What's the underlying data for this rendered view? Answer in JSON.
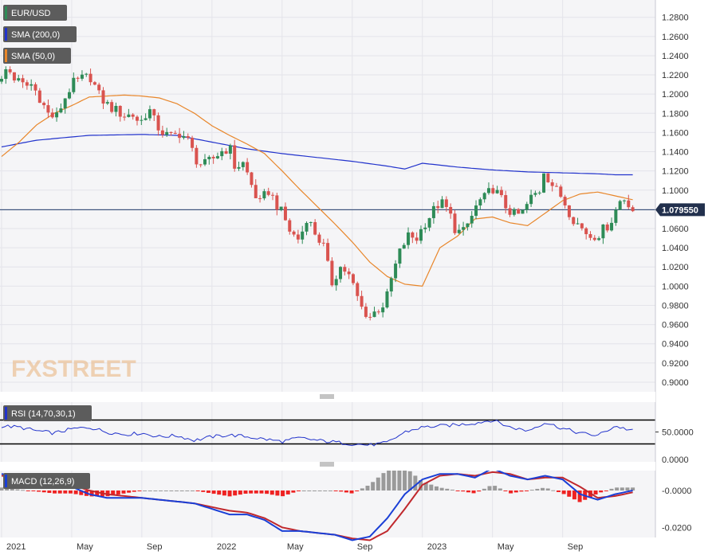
{
  "colors": {
    "bull": "#2e8b57",
    "bear": "#d9534f",
    "sma200": "#2233cc",
    "sma50": "#e8862a",
    "rsi_line": "#2233cc",
    "macd_line": "#1a3fd6",
    "signal_line": "#c0282d",
    "hist_pos": "#9a9a9a",
    "hist_neg": "#ee2222",
    "current_price_line": "#1f3a6b",
    "price_tag": "#22304d"
  },
  "logo": {
    "text": "FXSTREET"
  },
  "chart_data": [
    {
      "type": "candlestick",
      "title": "EUR/USD",
      "legend": [
        "EUR/USD",
        "SMA (200,0)",
        "SMA (50,0)"
      ],
      "y_ticks": [
        "1.2800",
        "1.2600",
        "1.2400",
        "1.2200",
        "1.2000",
        "1.1800",
        "1.1600",
        "1.1400",
        "1.1200",
        "1.1000",
        "1.0800",
        "1.0600",
        "1.0400",
        "1.0200",
        "1.0000",
        "0.9800",
        "0.9600",
        "0.9400",
        "0.9200",
        "0.9000"
      ],
      "ylim": [
        0.89,
        1.298
      ],
      "current_price": "1.079550",
      "x_labels": [
        {
          "label": "2021",
          "t": 0
        },
        {
          "label": "May",
          "t": 4
        },
        {
          "label": "Sep",
          "t": 8
        },
        {
          "label": "2022",
          "t": 12
        },
        {
          "label": "May",
          "t": 16
        },
        {
          "label": "Sep",
          "t": 20
        },
        {
          "label": "2023",
          "t": 24
        },
        {
          "label": "May",
          "t": 28
        },
        {
          "label": "Sep",
          "t": 32
        }
      ],
      "x_range": [
        0,
        36.2
      ],
      "close_anchors": [
        [
          0,
          1.213
        ],
        [
          0.3,
          1.228
        ],
        [
          0.8,
          1.215
        ],
        [
          1.3,
          1.208
        ],
        [
          1.7,
          1.21
        ],
        [
          2.2,
          1.196
        ],
        [
          2.6,
          1.18
        ],
        [
          3.1,
          1.175
        ],
        [
          3.5,
          1.192
        ],
        [
          4.0,
          1.21
        ],
        [
          4.6,
          1.216
        ],
        [
          5.1,
          1.218
        ],
        [
          5.5,
          1.2
        ],
        [
          6.0,
          1.189
        ],
        [
          6.5,
          1.183
        ],
        [
          7.0,
          1.178
        ],
        [
          7.5,
          1.178
        ],
        [
          7.9,
          1.17
        ],
        [
          8.4,
          1.185
        ],
        [
          8.8,
          1.168
        ],
        [
          9.3,
          1.158
        ],
        [
          9.7,
          1.155
        ],
        [
          10.2,
          1.16
        ],
        [
          10.6,
          1.152
        ],
        [
          11.1,
          1.132
        ],
        [
          11.5,
          1.125
        ],
        [
          12.0,
          1.132
        ],
        [
          12.5,
          1.14
        ],
        [
          13.0,
          1.145
        ],
        [
          13.3,
          1.124
        ],
        [
          13.8,
          1.128
        ],
        [
          14.3,
          1.103
        ],
        [
          14.7,
          1.085
        ],
        [
          15.2,
          1.1
        ],
        [
          15.6,
          1.088
        ],
        [
          16.1,
          1.072
        ],
        [
          16.5,
          1.055
        ],
        [
          17.0,
          1.048
        ],
        [
          17.4,
          1.072
        ],
        [
          17.9,
          1.055
        ],
        [
          18.4,
          1.04
        ],
        [
          18.8,
          1.002
        ],
        [
          19.3,
          1.02
        ],
        [
          19.7,
          1.015
        ],
        [
          20.1,
          0.998
        ],
        [
          20.5,
          0.978
        ],
        [
          21.0,
          0.968
        ],
        [
          21.4,
          0.975
        ],
        [
          21.9,
          0.983
        ],
        [
          22.3,
          1.012
        ],
        [
          22.8,
          1.04
        ],
        [
          23.2,
          1.052
        ],
        [
          23.7,
          1.05
        ],
        [
          24.1,
          1.065
        ],
        [
          24.5,
          1.075
        ],
        [
          25.0,
          1.088
        ],
        [
          25.5,
          1.078
        ],
        [
          25.9,
          1.058
        ],
        [
          26.3,
          1.055
        ],
        [
          26.8,
          1.072
        ],
        [
          27.2,
          1.088
        ],
        [
          27.6,
          1.092
        ],
        [
          28.0,
          1.103
        ],
        [
          28.4,
          1.093
        ],
        [
          28.8,
          1.082
        ],
        [
          29.3,
          1.073
        ],
        [
          29.7,
          1.076
        ],
        [
          30.2,
          1.092
        ],
        [
          30.7,
          1.1
        ],
        [
          30.9,
          1.122
        ],
        [
          31.2,
          1.112
        ],
        [
          31.6,
          1.1
        ],
        [
          32.0,
          1.092
        ],
        [
          32.3,
          1.08
        ],
        [
          32.7,
          1.068
        ],
        [
          33.2,
          1.058
        ],
        [
          33.6,
          1.052
        ],
        [
          34.1,
          1.055
        ],
        [
          34.5,
          1.062
        ],
        [
          34.9,
          1.072
        ],
        [
          35.2,
          1.088
        ],
        [
          35.6,
          1.092
        ],
        [
          36.0,
          1.0795
        ]
      ],
      "sma200_anchors": [
        [
          0,
          1.145
        ],
        [
          2,
          1.152
        ],
        [
          5,
          1.157
        ],
        [
          8,
          1.158
        ],
        [
          10,
          1.157
        ],
        [
          12,
          1.15
        ],
        [
          14,
          1.143
        ],
        [
          16,
          1.138
        ],
        [
          18,
          1.134
        ],
        [
          20,
          1.13
        ],
        [
          22,
          1.125
        ],
        [
          23,
          1.122
        ],
        [
          24,
          1.128
        ],
        [
          26,
          1.124
        ],
        [
          28,
          1.121
        ],
        [
          30,
          1.119
        ],
        [
          32,
          1.118
        ],
        [
          34,
          1.117
        ],
        [
          35,
          1.116
        ],
        [
          36,
          1.116
        ]
      ],
      "sma50_anchors": [
        [
          0,
          1.135
        ],
        [
          1,
          1.15
        ],
        [
          2,
          1.168
        ],
        [
          3,
          1.18
        ],
        [
          4,
          1.188
        ],
        [
          5,
          1.197
        ],
        [
          6,
          1.198
        ],
        [
          7,
          1.199
        ],
        [
          8,
          1.198
        ],
        [
          9,
          1.196
        ],
        [
          10,
          1.19
        ],
        [
          11,
          1.18
        ],
        [
          12,
          1.167
        ],
        [
          13,
          1.157
        ],
        [
          14,
          1.148
        ],
        [
          15,
          1.138
        ],
        [
          16,
          1.12
        ],
        [
          17,
          1.101
        ],
        [
          18,
          1.083
        ],
        [
          19,
          1.065
        ],
        [
          20,
          1.046
        ],
        [
          21,
          1.025
        ],
        [
          22,
          1.01
        ],
        [
          23,
          1.002
        ],
        [
          24,
          1.0
        ],
        [
          25,
          1.04
        ],
        [
          26,
          1.052
        ],
        [
          27,
          1.07
        ],
        [
          28,
          1.072
        ],
        [
          29,
          1.066
        ],
        [
          30,
          1.063
        ],
        [
          31,
          1.076
        ],
        [
          32,
          1.089
        ],
        [
          33,
          1.096
        ],
        [
          34,
          1.098
        ],
        [
          35,
          1.094
        ],
        [
          36,
          1.09
        ]
      ]
    },
    {
      "type": "line",
      "title": "RSI (14,70,30,1)",
      "legend": [
        "RSI (14,70,30,1)"
      ],
      "y_ticks": [
        "50.0000",
        "0.0000"
      ],
      "ylim": [
        0,
        100
      ],
      "levels": [
        70,
        30
      ],
      "rsi_anchors": [
        [
          0,
          60
        ],
        [
          1,
          58
        ],
        [
          2,
          52
        ],
        [
          3,
          48
        ],
        [
          4,
          55
        ],
        [
          5,
          58
        ],
        [
          6,
          50
        ],
        [
          7,
          46
        ],
        [
          8,
          48
        ],
        [
          9,
          42
        ],
        [
          10,
          44
        ],
        [
          11,
          36
        ],
        [
          12,
          42
        ],
        [
          13,
          45
        ],
        [
          14,
          42
        ],
        [
          15,
          38
        ],
        [
          16,
          34
        ],
        [
          17,
          40
        ],
        [
          18,
          36
        ],
        [
          19,
          33
        ],
        [
          20,
          30
        ],
        [
          21,
          28
        ],
        [
          22,
          32
        ],
        [
          23,
          50
        ],
        [
          24,
          58
        ],
        [
          25,
          60
        ],
        [
          26,
          62
        ],
        [
          27,
          65
        ],
        [
          28,
          70
        ],
        [
          29,
          58
        ],
        [
          30,
          52
        ],
        [
          31,
          66
        ],
        [
          32,
          56
        ],
        [
          33,
          48
        ],
        [
          34,
          44
        ],
        [
          35,
          60
        ],
        [
          36,
          52
        ]
      ]
    },
    {
      "type": "macd",
      "title": "MACD (12,26,9)",
      "legend": [
        "MACD (12,26,9)"
      ],
      "y_ticks": [
        "-0.0000",
        "-0.0200"
      ],
      "ylim": [
        -0.0255,
        0.0108
      ],
      "macd_anchors": [
        [
          0,
          0.009
        ],
        [
          1.5,
          0.007
        ],
        [
          3,
          0.004
        ],
        [
          4,
          0.002
        ],
        [
          5,
          -0.002
        ],
        [
          6,
          -0.004
        ],
        [
          7,
          -0.004
        ],
        [
          8,
          -0.004
        ],
        [
          9,
          -0.005
        ],
        [
          10,
          -0.006
        ],
        [
          11,
          -0.007
        ],
        [
          12,
          -0.01
        ],
        [
          13,
          -0.013
        ],
        [
          14,
          -0.013
        ],
        [
          15,
          -0.016
        ],
        [
          16,
          -0.022
        ],
        [
          17,
          -0.022
        ],
        [
          18,
          -0.023
        ],
        [
          19,
          -0.024
        ],
        [
          20,
          -0.027
        ],
        [
          21,
          -0.025
        ],
        [
          22,
          -0.015
        ],
        [
          23,
          -0.002
        ],
        [
          24,
          0.006
        ],
        [
          25,
          0.009
        ],
        [
          26,
          0.009
        ],
        [
          27,
          0.007
        ],
        [
          28,
          0.012
        ],
        [
          29,
          0.008
        ],
        [
          30,
          0.006
        ],
        [
          31,
          0.008
        ],
        [
          32,
          0.006
        ],
        [
          33,
          -0.002
        ],
        [
          34,
          -0.005
        ],
        [
          35,
          -0.002
        ],
        [
          36,
          0.0
        ]
      ],
      "signal_anchors": [
        [
          0,
          0.008
        ],
        [
          1.5,
          0.007
        ],
        [
          3,
          0.005
        ],
        [
          4,
          0.003
        ],
        [
          5,
          0.0
        ],
        [
          6,
          -0.002
        ],
        [
          7,
          -0.003
        ],
        [
          8,
          -0.004
        ],
        [
          9,
          -0.005
        ],
        [
          10,
          -0.006
        ],
        [
          11,
          -0.007
        ],
        [
          12,
          -0.009
        ],
        [
          13,
          -0.011
        ],
        [
          14,
          -0.012
        ],
        [
          15,
          -0.015
        ],
        [
          16,
          -0.02
        ],
        [
          17,
          -0.022
        ],
        [
          18,
          -0.023
        ],
        [
          19,
          -0.024
        ],
        [
          20,
          -0.026
        ],
        [
          21,
          -0.027
        ],
        [
          22,
          -0.022
        ],
        [
          23,
          -0.01
        ],
        [
          24,
          0.003
        ],
        [
          25,
          0.008
        ],
        [
          26,
          0.009
        ],
        [
          27,
          0.008
        ],
        [
          28,
          0.01
        ],
        [
          29,
          0.009
        ],
        [
          30,
          0.006
        ],
        [
          31,
          0.007
        ],
        [
          32,
          0.007
        ],
        [
          33,
          0.002
        ],
        [
          34,
          -0.004
        ],
        [
          35,
          -0.003
        ],
        [
          36,
          -0.001
        ]
      ]
    }
  ]
}
